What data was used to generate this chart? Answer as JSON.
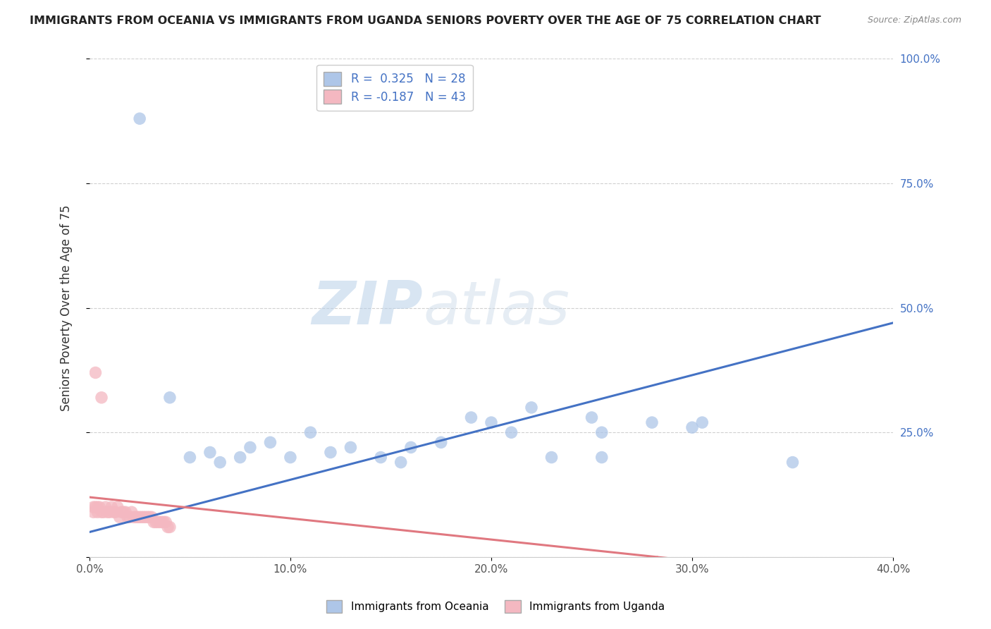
{
  "title": "IMMIGRANTS FROM OCEANIA VS IMMIGRANTS FROM UGANDA SENIORS POVERTY OVER THE AGE OF 75 CORRELATION CHART",
  "source": "Source: ZipAtlas.com",
  "ylabel": "Seniors Poverty Over the Age of 75",
  "color_oceania": "#aec6e8",
  "color_uganda": "#f4b8c1",
  "color_line_oceania": "#4472c4",
  "color_line_uganda": "#e07880",
  "legend1_label": "R =  0.325   N = 28",
  "legend2_label": "R = -0.187   N = 43",
  "legend_oceania": "Immigrants from Oceania",
  "legend_uganda": "Immigrants from Uganda",
  "watermark_zip": "ZIP",
  "watermark_atlas": "atlas",
  "background_color": "#ffffff",
  "grid_color": "#d0d0d0",
  "xlim": [
    0.0,
    0.4
  ],
  "ylim": [
    0.0,
    1.0
  ],
  "oceania_x": [
    0.025,
    0.04,
    0.05,
    0.06,
    0.065,
    0.075,
    0.08,
    0.09,
    0.1,
    0.11,
    0.12,
    0.13,
    0.145,
    0.155,
    0.16,
    0.175,
    0.19,
    0.2,
    0.21,
    0.22,
    0.23,
    0.25,
    0.255,
    0.28,
    0.3,
    0.305,
    0.35,
    0.255
  ],
  "oceania_y": [
    0.88,
    0.32,
    0.2,
    0.21,
    0.19,
    0.2,
    0.22,
    0.23,
    0.2,
    0.25,
    0.21,
    0.22,
    0.2,
    0.19,
    0.22,
    0.23,
    0.28,
    0.27,
    0.25,
    0.3,
    0.2,
    0.28,
    0.25,
    0.27,
    0.26,
    0.27,
    0.19,
    0.2
  ],
  "uganda_x": [
    0.002,
    0.003,
    0.004,
    0.005,
    0.006,
    0.007,
    0.008,
    0.009,
    0.01,
    0.011,
    0.012,
    0.013,
    0.014,
    0.015,
    0.016,
    0.017,
    0.018,
    0.019,
    0.02,
    0.021,
    0.022,
    0.023,
    0.024,
    0.025,
    0.026,
    0.027,
    0.028,
    0.029,
    0.03,
    0.031,
    0.032,
    0.033,
    0.034,
    0.035,
    0.036,
    0.037,
    0.038,
    0.039,
    0.04,
    0.003,
    0.006,
    0.002,
    0.004
  ],
  "uganda_y": [
    0.1,
    0.1,
    0.09,
    0.1,
    0.09,
    0.09,
    0.1,
    0.09,
    0.09,
    0.1,
    0.09,
    0.09,
    0.1,
    0.08,
    0.09,
    0.09,
    0.09,
    0.08,
    0.08,
    0.09,
    0.08,
    0.08,
    0.08,
    0.08,
    0.08,
    0.08,
    0.08,
    0.08,
    0.08,
    0.08,
    0.07,
    0.07,
    0.07,
    0.07,
    0.07,
    0.07,
    0.07,
    0.06,
    0.06,
    0.37,
    0.32,
    0.09,
    0.1
  ]
}
